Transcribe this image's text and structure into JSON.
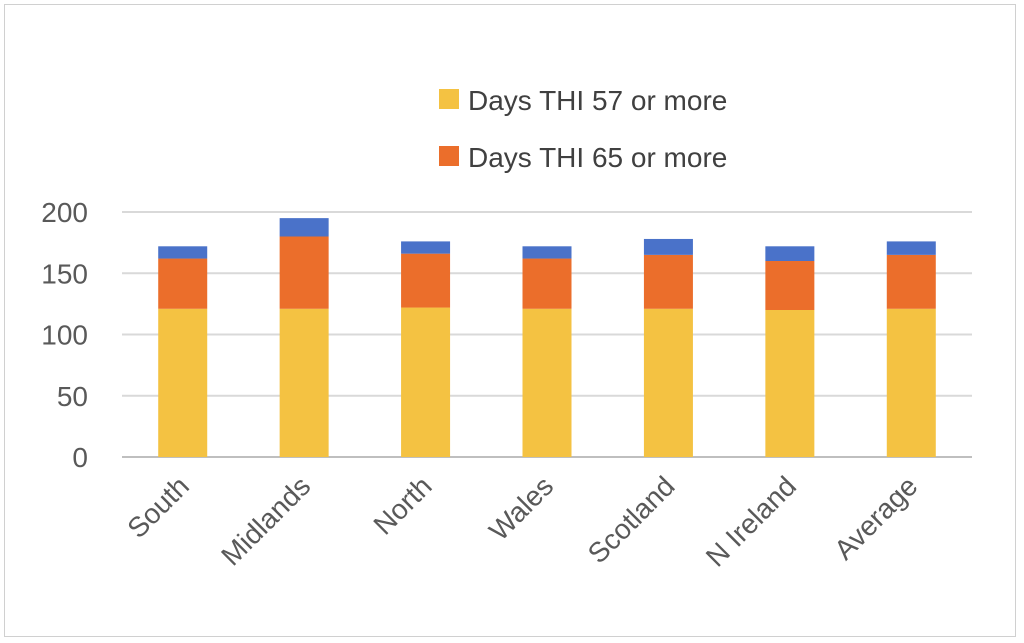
{
  "chart_data": {
    "type": "bar",
    "stacked": true,
    "title": "",
    "xlabel": "",
    "ylabel": "",
    "categories": [
      "South",
      "Midlands",
      "North",
      "Wales",
      "Scotland",
      "N Ireland",
      "Average"
    ],
    "series": [
      {
        "name": "Days THI 57 or more",
        "color": "#F4C242",
        "values": [
          121,
          121,
          122,
          121,
          121,
          120,
          121
        ]
      },
      {
        "name": "Days THI 65 or more",
        "color": "#EB6E2B",
        "values": [
          41,
          59,
          44,
          41,
          44,
          40,
          44
        ]
      },
      {
        "color": "#4A72C9",
        "values": [
          10,
          15,
          10,
          10,
          13,
          12,
          11
        ]
      }
    ],
    "ylim": [
      0,
      200
    ],
    "yticks": [
      0,
      50,
      100,
      150,
      200
    ],
    "grid": true,
    "legend_position": "top-right"
  }
}
